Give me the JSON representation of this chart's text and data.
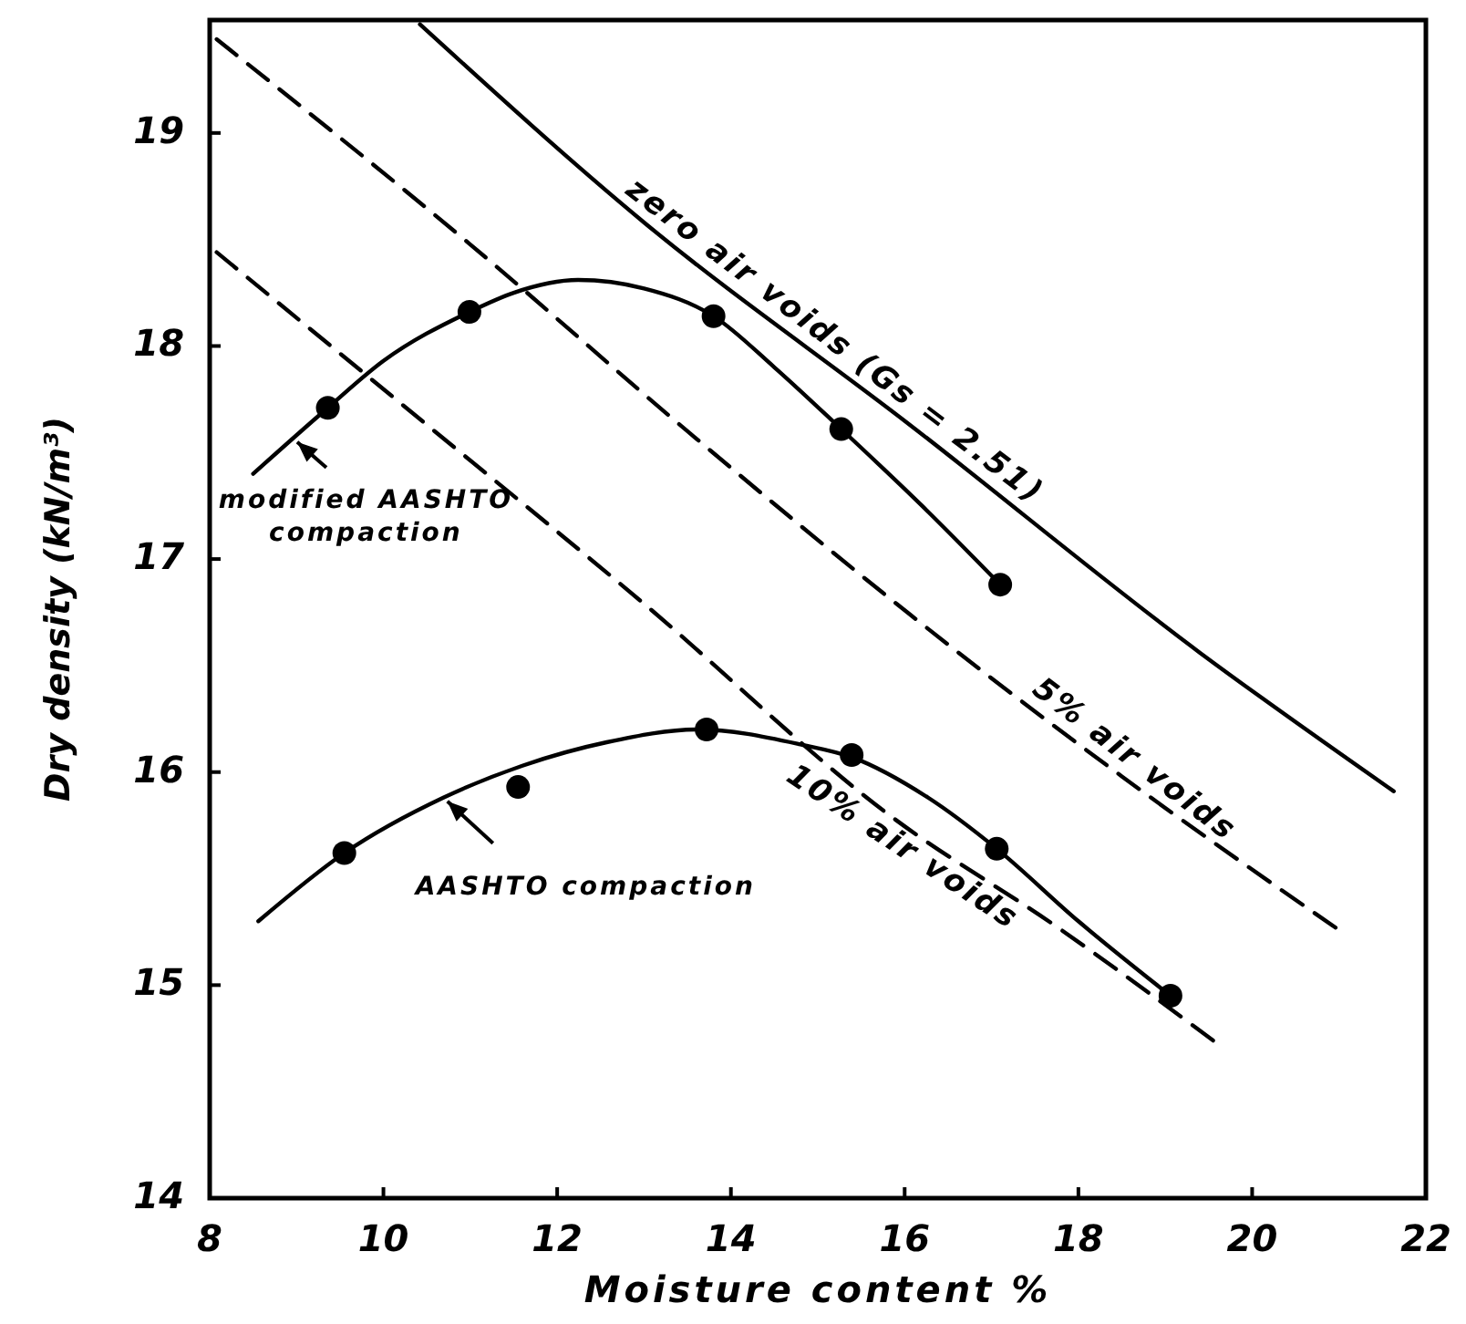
{
  "chart_data": {
    "type": "line",
    "xlabel": "Moisture content %",
    "ylabel": "Dry density (kN/m³)",
    "xlim": [
      8,
      22
    ],
    "ylim": [
      14,
      19.53
    ],
    "xticks": [
      8,
      10,
      12,
      14,
      16,
      18,
      20,
      22
    ],
    "yticks": [
      14,
      15,
      16,
      17,
      18,
      19
    ],
    "grid": false,
    "legend": "left",
    "series": [
      {
        "name": "zero air voids (Gs = 2.51)",
        "color": "#000000",
        "line_style": "solid",
        "x": [
          10.42,
          13.0,
          16.06,
          19.4,
          21.63
        ],
        "values": [
          19.51,
          18.58,
          17.63,
          16.56,
          15.91
        ]
      },
      {
        "name": "5% air voids",
        "color": "#000000",
        "line_style": "dashed",
        "x": [
          8.08,
          10.99,
          13.5,
          16.06,
          18.5,
          20.96
        ],
        "values": [
          19.44,
          18.48,
          17.6,
          16.74,
          15.98,
          15.27
        ]
      },
      {
        "name": "10% air voids",
        "color": "#000000",
        "line_style": "dashed",
        "x": [
          8.08,
          10.5,
          13.0,
          15.85,
          17.8,
          19.55
        ],
        "values": [
          18.44,
          17.63,
          16.79,
          15.79,
          15.26,
          14.74
        ]
      },
      {
        "name": "modified AASHTO compaction",
        "color": "#000000",
        "line_style": "solid",
        "x": [
          8.5,
          9.36,
          10.0,
          10.99,
          11.5,
          12.24,
          13.0,
          13.8,
          14.5,
          15.27,
          16.2,
          17.1
        ],
        "values": [
          17.4,
          17.71,
          17.93,
          18.16,
          18.25,
          18.31,
          18.27,
          18.14,
          17.9,
          17.61,
          17.25,
          16.88
        ]
      },
      {
        "type": "scatter",
        "color": "#000000",
        "marker": "circle",
        "x": [
          9.36,
          10.99,
          13.8,
          15.27,
          17.1
        ],
        "values": [
          17.71,
          18.16,
          18.14,
          17.61,
          16.88
        ]
      },
      {
        "name": "AASHTO compaction",
        "color": "#000000",
        "line_style": "solid",
        "x": [
          8.56,
          9.55,
          10.69,
          11.6,
          12.57,
          13.62,
          14.8,
          15.39,
          16.27,
          17.06,
          18.0,
          19.06
        ],
        "values": [
          15.3,
          15.62,
          15.88,
          16.03,
          16.14,
          16.2,
          16.13,
          16.07,
          15.88,
          15.64,
          15.3,
          14.95
        ]
      },
      {
        "type": "scatter",
        "color": "#000000",
        "marker": "circle",
        "x": [
          9.55,
          11.55,
          13.72,
          15.39,
          17.06,
          19.06
        ],
        "values": [
          15.62,
          15.93,
          16.2,
          16.08,
          15.64,
          14.95
        ]
      }
    ]
  }
}
